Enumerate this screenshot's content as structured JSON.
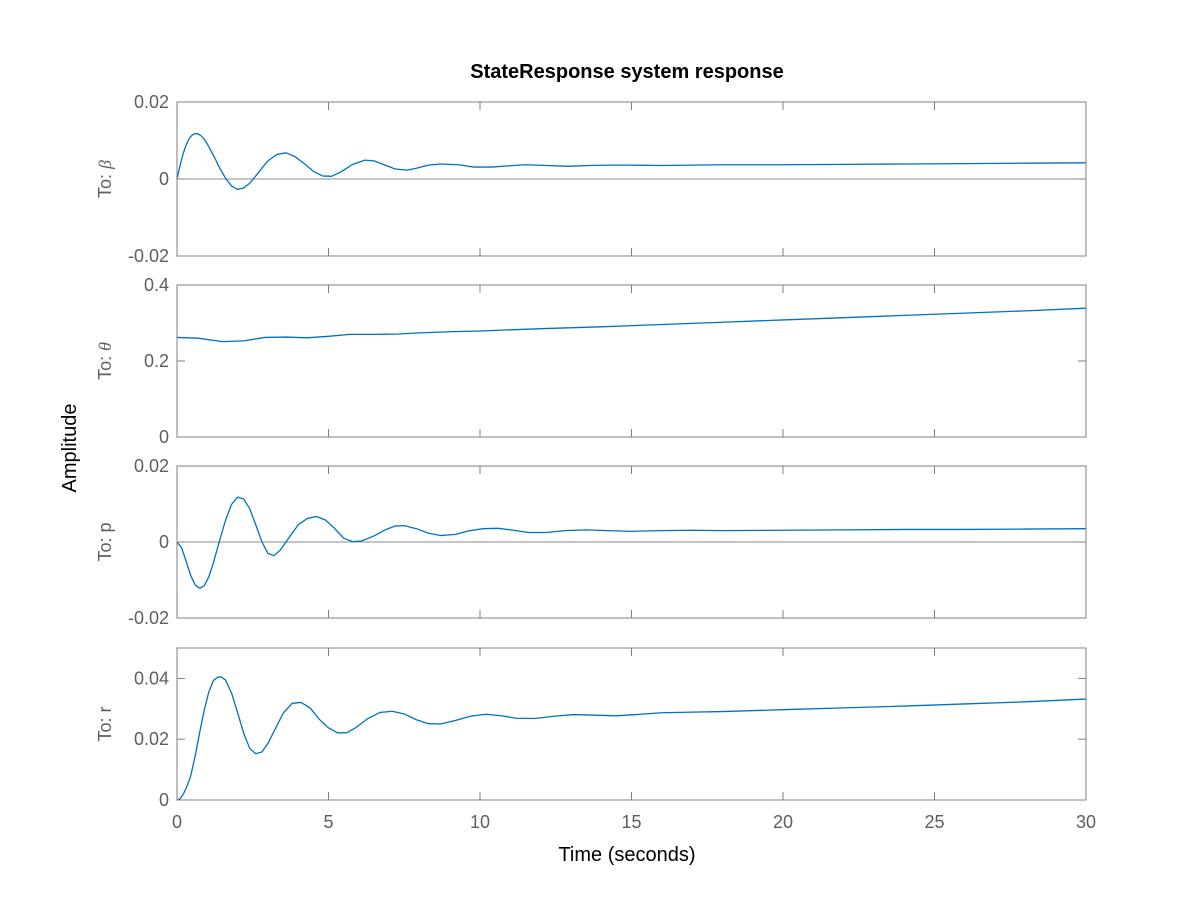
{
  "chart_data": {
    "type": "line",
    "title": "StateResponse system response",
    "xlabel": "Time (seconds)",
    "ylabel": "Amplitude",
    "xlim": [
      0,
      30
    ],
    "xticks": [
      0,
      5,
      10,
      15,
      20,
      25,
      30
    ],
    "xtick_labels": [
      "0",
      "5",
      "10",
      "15",
      "20",
      "25",
      "30"
    ],
    "grid": false,
    "line_color": "#0072bd",
    "zero_line_color": "#8c8c8c",
    "axis_color": "#7f7f7f",
    "text_color": "#5e5e5e",
    "subplots": [
      {
        "ylabel_prefix": "To: ",
        "ylabel_symbol": "β",
        "ylim": [
          -0.02,
          0.02
        ],
        "yticks": [
          -0.02,
          0,
          0.02
        ],
        "ytick_labels": [
          "-0.02",
          "0",
          "0.02"
        ],
        "zero_line": true,
        "x": [
          0,
          0.1,
          0.2,
          0.3,
          0.4,
          0.5,
          0.6,
          0.7,
          0.8,
          0.9,
          1.0,
          1.2,
          1.4,
          1.6,
          1.8,
          2.0,
          2.2,
          2.4,
          2.6,
          2.8,
          3.0,
          3.3,
          3.6,
          3.9,
          4.2,
          4.5,
          4.8,
          5.1,
          5.4,
          5.8,
          6.2,
          6.5,
          6.8,
          7.2,
          7.6,
          7.9,
          8.3,
          8.7,
          9.3,
          9.8,
          10.4,
          10.9,
          11.5,
          12.2,
          12.9,
          13.6,
          14.3,
          15,
          16,
          17,
          18,
          20,
          22,
          24,
          26,
          28,
          30
        ],
        "y": [
          0,
          0.0035,
          0.0065,
          0.0088,
          0.0105,
          0.0114,
          0.0118,
          0.0117,
          0.0112,
          0.0103,
          0.0091,
          0.0062,
          0.003,
          0.0002,
          -0.0018,
          -0.0027,
          -0.0023,
          -0.0011,
          0.0008,
          0.0028,
          0.0047,
          0.0064,
          0.0068,
          0.0058,
          0.004,
          0.002,
          0.0008,
          0.0007,
          0.0018,
          0.0038,
          0.0049,
          0.0047,
          0.0038,
          0.0026,
          0.0023,
          0.0028,
          0.0036,
          0.0039,
          0.0037,
          0.0031,
          0.0031,
          0.0034,
          0.0037,
          0.0035,
          0.0033,
          0.0035,
          0.0036,
          0.0036,
          0.0035,
          0.0036,
          0.0037,
          0.0037,
          0.0038,
          0.0039,
          0.004,
          0.0041,
          0.0042
        ]
      },
      {
        "ylabel_prefix": "To: ",
        "ylabel_symbol": "θ",
        "ylim": [
          0,
          0.4
        ],
        "yticks": [
          0,
          0.2,
          0.4
        ],
        "ytick_labels": [
          "0",
          "0.2",
          "0.4"
        ],
        "zero_line": false,
        "x": [
          0,
          0.7,
          1.5,
          2.2,
          2.9,
          3.6,
          4.3,
          5,
          5.7,
          6.5,
          7.3,
          8,
          9,
          10,
          12,
          14,
          16,
          18,
          20,
          22,
          24,
          26,
          28,
          30
        ],
        "y": [
          0.262,
          0.26,
          0.251,
          0.253,
          0.262,
          0.263,
          0.261,
          0.265,
          0.27,
          0.27,
          0.271,
          0.274,
          0.277,
          0.279,
          0.285,
          0.29,
          0.296,
          0.302,
          0.308,
          0.314,
          0.32,
          0.326,
          0.332,
          0.339
        ]
      },
      {
        "ylabel_prefix": "To: ",
        "ylabel_symbol": "p",
        "ylim": [
          -0.02,
          0.02
        ],
        "yticks": [
          -0.02,
          0,
          0.02
        ],
        "ytick_labels": [
          "-0.02",
          "0",
          "0.02"
        ],
        "zero_line": true,
        "x": [
          0,
          0.15,
          0.3,
          0.45,
          0.6,
          0.75,
          0.9,
          1.05,
          1.2,
          1.4,
          1.6,
          1.8,
          2.0,
          2.2,
          2.4,
          2.6,
          2.8,
          3.0,
          3.2,
          3.4,
          3.7,
          4.0,
          4.3,
          4.6,
          4.9,
          5.2,
          5.5,
          5.8,
          6.1,
          6.5,
          6.9,
          7.2,
          7.5,
          7.9,
          8.3,
          8.7,
          9.2,
          9.6,
          10.1,
          10.6,
          11.1,
          11.6,
          12.2,
          12.8,
          13.5,
          14.2,
          15,
          16,
          17,
          18,
          20,
          22,
          24,
          26,
          28,
          30
        ],
        "y": [
          0,
          -0.0015,
          -0.005,
          -0.0088,
          -0.0113,
          -0.0122,
          -0.0115,
          -0.0092,
          -0.0055,
          0.0002,
          0.0057,
          0.0099,
          0.0118,
          0.0113,
          0.0088,
          0.0045,
          0.0001,
          -0.003,
          -0.0036,
          -0.0022,
          0.0012,
          0.0045,
          0.0062,
          0.0067,
          0.0058,
          0.0036,
          0.001,
          0.0001,
          0.0003,
          0.0016,
          0.0033,
          0.0042,
          0.0043,
          0.0035,
          0.0023,
          0.0017,
          0.002,
          0.0029,
          0.0035,
          0.0036,
          0.0031,
          0.0025,
          0.0025,
          0.003,
          0.0032,
          0.003,
          0.0028,
          0.003,
          0.0031,
          0.003,
          0.0031,
          0.0032,
          0.0033,
          0.0033,
          0.0034,
          0.0035
        ]
      },
      {
        "ylabel_prefix": "To: ",
        "ylabel_symbol": "r",
        "ylim": [
          0,
          0.05
        ],
        "yticks": [
          0,
          0.02,
          0.04
        ],
        "ytick_labels": [
          "0",
          "0.02",
          "0.04"
        ],
        "zero_line": false,
        "x": [
          0,
          0.1,
          0.2,
          0.3,
          0.45,
          0.6,
          0.75,
          0.9,
          1.05,
          1.2,
          1.35,
          1.45,
          1.6,
          1.8,
          2.0,
          2.2,
          2.4,
          2.6,
          2.8,
          3.0,
          3.2,
          3.5,
          3.8,
          4.1,
          4.4,
          4.7,
          5.0,
          5.3,
          5.6,
          5.9,
          6.3,
          6.7,
          7.1,
          7.5,
          7.9,
          8.3,
          8.7,
          9.2,
          9.7,
          10.2,
          10.7,
          11.2,
          11.8,
          12.4,
          13.1,
          13.8,
          14.5,
          15.3,
          16,
          17,
          18,
          20,
          22,
          24,
          26,
          28,
          30
        ],
        "y": [
          0,
          0.0004,
          0.0018,
          0.0038,
          0.0078,
          0.0145,
          0.0223,
          0.0296,
          0.0355,
          0.0393,
          0.0404,
          0.0405,
          0.0395,
          0.0352,
          0.0287,
          0.022,
          0.017,
          0.0152,
          0.0158,
          0.0186,
          0.0225,
          0.0285,
          0.0318,
          0.0321,
          0.0302,
          0.0265,
          0.0237,
          0.0221,
          0.0221,
          0.0238,
          0.0268,
          0.0288,
          0.0292,
          0.0283,
          0.0264,
          0.0251,
          0.025,
          0.0262,
          0.0276,
          0.0282,
          0.0277,
          0.0269,
          0.0268,
          0.0275,
          0.0281,
          0.0279,
          0.0277,
          0.0282,
          0.0287,
          0.0289,
          0.0291,
          0.0297,
          0.0303,
          0.0309,
          0.0316,
          0.0323,
          0.0332
        ]
      }
    ]
  }
}
